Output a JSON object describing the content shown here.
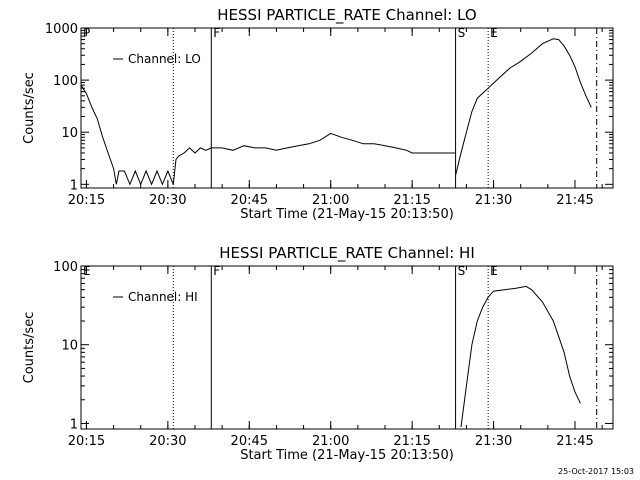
{
  "footer_timestamp": "25-Oct-2017 15:03",
  "chart_data": [
    {
      "type": "line",
      "title": "HESSI PARTICLE_RATE Channel: LO",
      "xlabel": "Start Time (21-May-15 20:13:50)",
      "ylabel": "Counts/sec",
      "yscale": "log",
      "xlim": [
        "20:14",
        "21:52"
      ],
      "ylim": [
        0.85,
        1000
      ],
      "xticks": [
        "20:15",
        "20:30",
        "20:45",
        "21:00",
        "21:15",
        "21:30",
        "21:45"
      ],
      "yticks": [
        "1",
        "10",
        "100",
        "1000"
      ],
      "legend": {
        "label": "Channel: LO",
        "position": "top-left"
      },
      "markers": [
        {
          "label": "F",
          "x": "20:38",
          "style": "solid"
        },
        {
          "label": "S",
          "x": "21:23",
          "style": "solid"
        },
        {
          "label": "E",
          "x": "21:29",
          "style": "dotted"
        },
        {
          "label": "",
          "x": "20:31",
          "style": "dotted"
        },
        {
          "label": "",
          "x": "21:49",
          "style": "dashdot"
        }
      ],
      "edge_labels": [
        {
          "label": "P",
          "x": "20:14"
        }
      ],
      "series": [
        {
          "name": "Channel: LO",
          "segments": [
            [
              [
                "20:14",
                80
              ],
              [
                "20:15",
                55
              ],
              [
                "20:16",
                30
              ],
              [
                "20:17",
                18
              ],
              [
                "20:18",
                8
              ],
              [
                "20:19",
                4
              ],
              [
                "20:20",
                2
              ],
              [
                "20:20.5",
                1
              ],
              [
                "20:21",
                1.8
              ],
              [
                "20:22",
                1.8
              ],
              [
                "20:23",
                1
              ],
              [
                "20:24",
                1.8
              ],
              [
                "20:25",
                1
              ],
              [
                "20:26",
                1.8
              ],
              [
                "20:27",
                1
              ],
              [
                "20:28",
                1.8
              ],
              [
                "20:29",
                1
              ],
              [
                "20:30",
                1.8
              ],
              [
                "20:31",
                1
              ],
              [
                "20:31.5",
                3
              ],
              [
                "20:32",
                3.5
              ],
              [
                "20:33",
                4
              ],
              [
                "20:34",
                5
              ],
              [
                "20:35",
                4
              ],
              [
                "20:36",
                5
              ],
              [
                "20:37",
                4.5
              ],
              [
                "20:38",
                5
              ],
              [
                "20:40",
                5
              ],
              [
                "20:42",
                4.5
              ],
              [
                "20:44",
                5.5
              ],
              [
                "20:46",
                5
              ],
              [
                "20:48",
                5
              ],
              [
                "20:50",
                4.5
              ],
              [
                "20:52",
                5
              ],
              [
                "20:54",
                5.5
              ],
              [
                "20:56",
                6
              ],
              [
                "20:58",
                7
              ],
              [
                "21:00",
                9.5
              ],
              [
                "21:02",
                8
              ],
              [
                "21:04",
                7
              ],
              [
                "21:06",
                6
              ],
              [
                "21:08",
                6
              ],
              [
                "21:10",
                5.5
              ],
              [
                "21:12",
                5
              ],
              [
                "21:14",
                4.5
              ],
              [
                "21:15",
                4
              ],
              [
                "21:18",
                4
              ],
              [
                "21:23",
                4
              ]
            ],
            [
              [
                "21:23",
                1.5
              ],
              [
                "21:24",
                4
              ],
              [
                "21:25",
                10
              ],
              [
                "21:26",
                25
              ],
              [
                "21:27",
                45
              ],
              [
                "21:29",
                70
              ],
              [
                "21:31",
                110
              ],
              [
                "21:33",
                170
              ],
              [
                "21:35",
                230
              ],
              [
                "21:37",
                330
              ],
              [
                "21:39",
                500
              ],
              [
                "21:41",
                620
              ],
              [
                "21:42",
                600
              ],
              [
                "21:43",
                450
              ],
              [
                "21:44",
                300
              ],
              [
                "21:45",
                180
              ],
              [
                "21:46",
                90
              ],
              [
                "21:47",
                50
              ],
              [
                "21:48",
                30
              ]
            ]
          ]
        }
      ]
    },
    {
      "type": "line",
      "title": "HESSI PARTICLE_RATE Channel: HI",
      "xlabel": "Start Time (21-May-15 20:13:50)",
      "ylabel": "Counts/sec",
      "yscale": "log",
      "xlim": [
        "20:14",
        "21:52"
      ],
      "ylim": [
        0.85,
        100
      ],
      "xticks": [
        "20:15",
        "20:30",
        "20:45",
        "21:00",
        "21:15",
        "21:30",
        "21:45"
      ],
      "yticks": [
        "1",
        "10",
        "100"
      ],
      "legend": {
        "label": "Channel: HI",
        "position": "top-left"
      },
      "markers": [
        {
          "label": "F",
          "x": "20:38",
          "style": "solid"
        },
        {
          "label": "S",
          "x": "21:23",
          "style": "solid"
        },
        {
          "label": "E",
          "x": "21:29",
          "style": "dotted"
        },
        {
          "label": "",
          "x": "20:31",
          "style": "dotted"
        },
        {
          "label": "",
          "x": "21:49",
          "style": "dashdot"
        }
      ],
      "edge_labels": [
        {
          "label": "E",
          "x": "20:14"
        }
      ],
      "series": [
        {
          "name": "Channel: HI",
          "segments": [
            [
              [
                "21:24",
                0.9
              ],
              [
                "21:25",
                3
              ],
              [
                "21:26",
                10
              ],
              [
                "21:27",
                20
              ],
              [
                "21:28",
                30
              ],
              [
                "21:29",
                40
              ],
              [
                "21:30",
                48
              ],
              [
                "21:32",
                50
              ],
              [
                "21:34",
                52
              ],
              [
                "21:36",
                55
              ],
              [
                "21:37",
                50
              ],
              [
                "21:39",
                35
              ],
              [
                "21:41",
                20
              ],
              [
                "21:43",
                8
              ],
              [
                "21:44",
                4
              ],
              [
                "21:45",
                2.5
              ],
              [
                "21:46",
                1.8
              ]
            ]
          ]
        }
      ]
    }
  ]
}
